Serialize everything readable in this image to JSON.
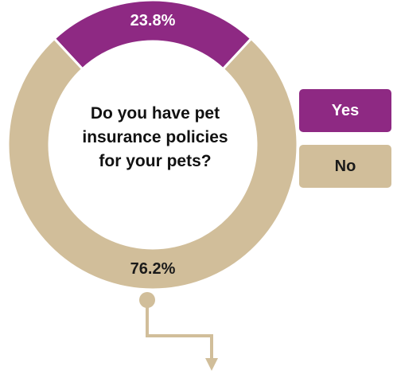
{
  "chart_data": {
    "type": "pie",
    "title": "Do you have pet\ninsurance policies\nfor your pets?",
    "categories": [
      "Yes",
      "No"
    ],
    "values": [
      23.8,
      76.2
    ],
    "value_labels": [
      "23.8%",
      "76.2%"
    ],
    "colors": [
      "#8E2983",
      "#D1BE9A"
    ],
    "label_colors": [
      "#FFFFFF",
      "#1A1A1A"
    ],
    "donut": true,
    "legend_placement": "right"
  }
}
